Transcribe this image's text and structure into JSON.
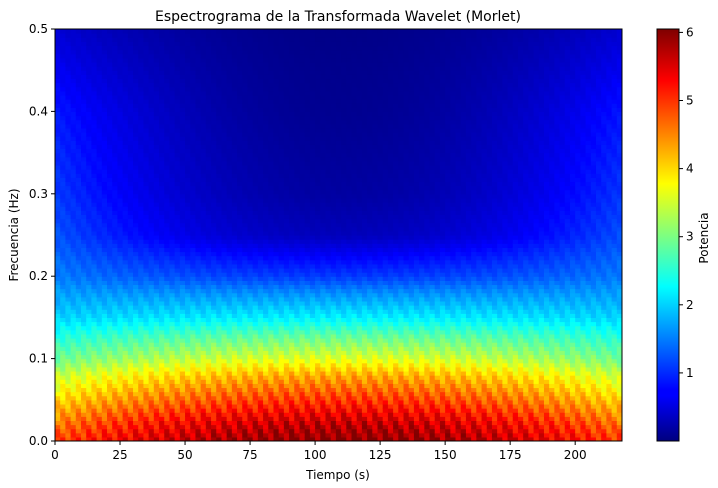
{
  "chart_data": {
    "type": "heatmap",
    "title": "Espectrograma de la Transformada Wavelet (Morlet)",
    "xlabel": "Tiempo (s)",
    "ylabel": "Frecuencia (Hz)",
    "xlim": [
      0,
      218
    ],
    "ylim": [
      0,
      0.5
    ],
    "x_ticks": [
      "0",
      "25",
      "50",
      "75",
      "100",
      "125",
      "150",
      "175",
      "200"
    ],
    "y_ticks": [
      "0.0",
      "0.1",
      "0.2",
      "0.3",
      "0.4",
      "0.5"
    ],
    "colormap": "jet",
    "colorbar": {
      "label": "Potencia",
      "range": [
        0,
        6.05
      ],
      "ticks": [
        "1",
        "2",
        "3",
        "4",
        "5",
        "6"
      ]
    },
    "power_profile": {
      "frequency_hz": [
        0.0,
        0.02,
        0.05,
        0.08,
        0.1,
        0.13,
        0.15,
        0.18,
        0.2,
        0.25,
        0.3,
        0.35,
        0.4,
        0.45,
        0.5
      ],
      "power_at_t_110": [
        6.0,
        5.7,
        5.0,
        4.3,
        3.6,
        2.8,
        2.2,
        1.6,
        1.1,
        0.35,
        0.2,
        0.15,
        0.1,
        0.08,
        0.05
      ],
      "power_at_t_0": [
        4.9,
        4.6,
        4.0,
        3.4,
        2.9,
        2.4,
        2.0,
        1.7,
        1.5,
        1.25,
        1.1,
        1.0,
        0.9,
        0.7,
        0.5
      ]
    }
  }
}
